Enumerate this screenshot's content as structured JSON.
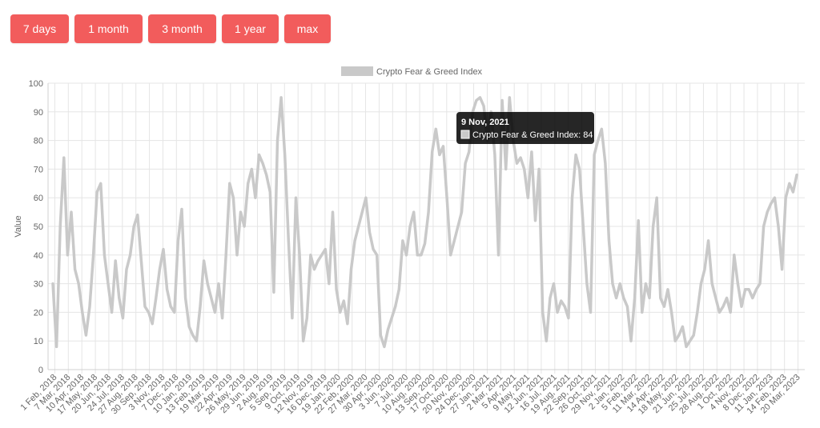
{
  "range_buttons": [
    {
      "label": "7 days"
    },
    {
      "label": "1 month"
    },
    {
      "label": "3 month"
    },
    {
      "label": "1 year"
    },
    {
      "label": "max"
    }
  ],
  "colors": {
    "button": "#f25c5c",
    "series": "#c9c9c9",
    "tooltip_bg": "#000000",
    "grid": "#e5e5e5"
  },
  "chart_data": {
    "type": "line",
    "ylabel": "Value",
    "ylim": [
      0,
      100
    ],
    "yticks": [
      0,
      10,
      20,
      30,
      40,
      50,
      60,
      70,
      80,
      90,
      100
    ],
    "legend_position": "top-center",
    "grid": true,
    "x_tick_labels": [
      "1 Feb, 2018",
      "7 Mar, 2018",
      "10 Apr, 2018",
      "17 May, 2018",
      "20 Jun, 2018",
      "24 Jul, 2018",
      "27 Aug, 2018",
      "30 Sep, 2018",
      "3 Nov, 2018",
      "7 Dec, 2018",
      "10 Jan, 2019",
      "13 Feb, 2019",
      "19 Mar, 2019",
      "22 Apr, 2019",
      "26 May, 2019",
      "29 Jun, 2019",
      "2 Aug, 2019",
      "5 Sep, 2019",
      "9 Oct, 2019",
      "12 Nov, 2019",
      "16 Dec, 2019",
      "19 Jan, 2020",
      "22 Feb, 2020",
      "27 Mar, 2020",
      "30 Apr, 2020",
      "3 Jun, 2020",
      "7 Jul, 2020",
      "10 Aug, 2020",
      "13 Sep, 2020",
      "17 Oct, 2020",
      "20 Nov, 2020",
      "24 Dec, 2020",
      "27 Jan, 2021",
      "2 Mar, 2021",
      "5 Apr, 2021",
      "9 May, 2021",
      "12 Jun, 2021",
      "16 Jul, 2021",
      "19 Aug, 2021",
      "22 Sep, 2021",
      "26 Oct, 2021",
      "29 Nov, 2021",
      "2 Jan, 2022",
      "5 Feb, 2022",
      "11 Mar, 2022",
      "14 Apr, 2022",
      "18 May, 2022",
      "21 Jun, 2022",
      "25 Jul, 2022",
      "28 Aug, 2022",
      "1 Oct, 2022",
      "4 Nov, 2022",
      "8 Dec, 2022",
      "11 Jan, 2023",
      "14 Feb, 2023",
      "20 Mar, 2023"
    ],
    "series": [
      {
        "name": "Crypto Fear & Greed Index",
        "anchor_values": [
          30,
          8,
          50,
          74,
          40,
          55,
          35,
          30,
          20,
          12,
          22,
          40,
          62,
          65,
          40,
          30,
          20,
          38,
          25,
          18,
          35,
          40,
          50,
          54,
          38,
          22,
          20,
          16,
          25,
          35,
          42,
          28,
          22,
          20,
          45,
          56,
          25,
          15,
          12,
          10,
          22,
          38,
          30,
          25,
          20,
          30,
          18,
          40,
          65,
          60,
          40,
          55,
          50,
          65,
          70,
          60,
          75,
          72,
          68,
          62,
          27,
          80,
          95,
          75,
          45,
          18,
          60,
          40,
          10,
          18,
          40,
          35,
          38,
          40,
          42,
          30,
          55,
          28,
          20,
          24,
          16,
          35,
          45,
          50,
          55,
          60,
          48,
          42,
          40,
          12,
          8,
          14,
          18,
          22,
          28,
          45,
          40,
          50,
          55,
          40,
          40,
          44,
          55,
          76,
          84,
          75,
          78,
          60,
          40,
          45,
          50,
          55,
          72,
          76,
          90,
          94,
          95,
          92,
          80,
          90,
          75,
          40,
          94,
          70,
          95,
          80,
          72,
          74,
          70,
          60,
          76,
          52,
          70,
          20,
          10,
          25,
          30,
          20,
          24,
          22,
          18,
          60,
          75,
          70,
          50,
          30,
          20,
          75,
          80,
          84,
          72,
          45,
          30,
          25,
          30,
          25,
          22,
          10,
          25,
          52,
          20,
          30,
          25,
          50,
          60,
          25,
          22,
          28,
          20,
          10,
          12,
          15,
          8,
          10,
          12,
          20,
          30,
          35,
          45,
          30,
          25,
          20,
          22,
          25,
          20,
          40,
          30,
          22,
          28,
          28,
          25,
          28,
          30,
          50,
          55,
          58,
          60,
          50,
          35,
          60,
          65,
          62,
          68
        ]
      }
    ]
  },
  "tooltip": {
    "date": "9 Nov, 2021",
    "series_label": "Crypto Fear & Greed Index",
    "value": 84
  }
}
